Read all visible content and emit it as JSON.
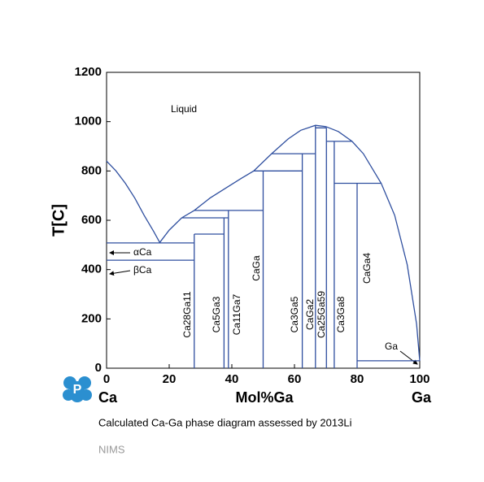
{
  "chart_data": {
    "type": "phase-diagram",
    "xlabel": "Mol%Ga",
    "ylabel": "T[C]",
    "left_component": "Ca",
    "right_component": "Ga",
    "xlim": [
      0,
      100
    ],
    "ylim": [
      0,
      1200
    ],
    "xticks": [
      0,
      20,
      40,
      60,
      80,
      100
    ],
    "yticks": [
      0,
      200,
      400,
      600,
      800,
      1000,
      1200
    ],
    "series": [
      {
        "color": "#2f4f9f",
        "x": [
          0,
          3,
          6,
          9,
          12,
          15,
          17,
          null,
          17,
          20,
          24,
          28,
          33,
          38,
          43,
          47,
          52.7,
          58,
          62,
          66.7,
          70,
          74,
          78.4,
          82,
          87.7,
          92,
          96,
          99,
          100,
          null,
          0,
          28,
          null,
          0,
          28,
          null,
          28,
          37.5,
          null,
          24,
          38.9,
          null,
          28,
          50,
          null,
          47,
          62.5,
          null,
          52.7,
          66.7,
          null,
          66.7,
          70.2,
          null,
          70.2,
          78.4,
          null,
          72.7,
          87.7,
          null,
          80,
          100,
          null,
          28,
          28,
          null,
          37.5,
          37.5,
          null,
          38.9,
          38.9,
          null,
          50,
          50,
          null,
          62.5,
          62.5,
          null,
          66.7,
          66.7,
          null,
          70.2,
          70.2,
          null,
          72.7,
          72.7,
          null,
          80,
          80
        ],
        "values": [
          840,
          800,
          750,
          690,
          620,
          555,
          510,
          null,
          510,
          560,
          610,
          640,
          690,
          730,
          770,
          800,
          870,
          930,
          965,
          985,
          980,
          960,
          920,
          870,
          750,
          620,
          420,
          180,
          30,
          null,
          508,
          508,
          null,
          438,
          438,
          null,
          544,
          544,
          null,
          610,
          610,
          null,
          640,
          640,
          null,
          800,
          800,
          null,
          870,
          870,
          null,
          975,
          975,
          null,
          920,
          920,
          null,
          750,
          750,
          null,
          30,
          30,
          null,
          0,
          544,
          null,
          0,
          610,
          null,
          0,
          640,
          null,
          0,
          800,
          null,
          0,
          870,
          null,
          0,
          985,
          null,
          0,
          975,
          null,
          0,
          920,
          null,
          0,
          750
        ]
      }
    ],
    "annotations": [
      "Liquid",
      "αCa",
      "βCa",
      "Ga",
      "Ca28Ga11",
      "Ca5Ga3",
      "Ca11Ga7",
      "CaGa",
      "Ca3Ga5",
      "CaGa2",
      "Ca25Ga59",
      "Ca3Ga8",
      "CaGa4"
    ],
    "caption": "Calculated Ca-Ga phase diagram assessed by 2013Li",
    "source": "NIMS"
  }
}
